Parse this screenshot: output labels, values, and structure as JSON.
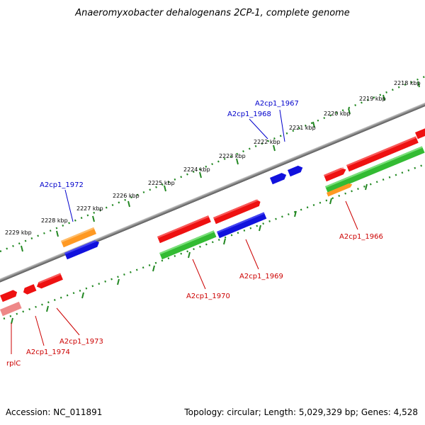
{
  "title": "Anaeromyxobacter dehalogenans 2CP-1, complete genome",
  "footer": {
    "accession": "Accession: NC_011891",
    "topology": "Topology: circular; Length: 5,029,329 bp; Genes: 4,528"
  },
  "scale_labels": [
    "2218 kbp",
    "2219 kbp",
    "2220 kbp",
    "2221 kbp",
    "2222 kbp",
    "2223 kbp",
    "2224 kbp",
    "2225 kbp",
    "2226 kbp",
    "2227 kbp",
    "2228 kbp",
    "2229 kbp"
  ],
  "gene_labels": {
    "outer": [
      "A2cp1_1967",
      "A2cp1_1968",
      "A2cp1_1972"
    ],
    "inner": [
      "A2cp1_1966",
      "A2cp1_1969",
      "A2cp1_1970",
      "A2cp1_1973",
      "A2cp1_1974",
      "rplC"
    ]
  },
  "colors": {
    "red": "#ee1111",
    "green": "#33bb33",
    "blue": "#1111dd",
    "orange": "#ff9922",
    "pink": "#ee8888",
    "scale": "#228822",
    "backbone": "#888888"
  }
}
